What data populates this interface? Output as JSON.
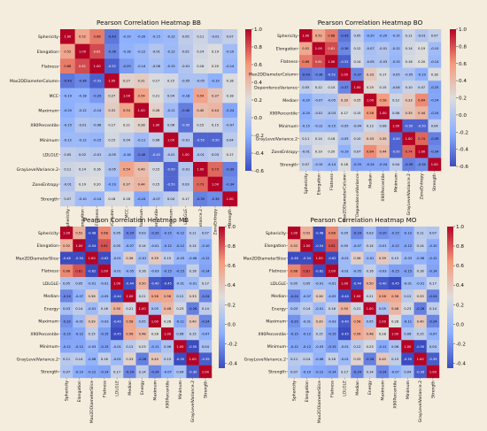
{
  "page": {
    "background": "#f4ecdc"
  },
  "colorbar_ticks": [
    "-0.6",
    "-0.4",
    "-0.2",
    "0.0",
    "0.2",
    "0.4",
    "0.6",
    "0.8",
    "1.0"
  ],
  "colorbar_ticks_short": [
    "-0.4",
    "-0.2",
    "0.0",
    "0.2",
    "0.4",
    "0.6",
    "0.8",
    "1.0"
  ],
  "colors": {
    "neg": "#3b4cc0",
    "mid": "#dddddd",
    "pos": "#b40426"
  },
  "chart_data": [
    {
      "type": "heatmap",
      "title": "Pearson Correlation Heatmap BB",
      "labels": [
        "Sphericity",
        "Elongation",
        "Flatness",
        "Max2DDiameterColumn",
        "MCC",
        "Maximum",
        "X90Percentile",
        "Minimum",
        "LDLGLE",
        "GrayLevelVariance.2",
        "ZoneEntropy",
        "Strength"
      ],
      "vmin": -0.6,
      "vmax": 1.0,
      "matrix": [
        [
          1.0,
          0.52,
          0.68,
          -0.43,
          -0.19,
          -0.2,
          -0.15,
          -0.12,
          0.05,
          0.11,
          -0.01,
          0.07
        ],
        [
          0.52,
          1.0,
          0.81,
          -0.36,
          -0.18,
          -0.12,
          -0.01,
          -0.12,
          0.02,
          0.14,
          0.19,
          -0.1
        ],
        [
          0.68,
          0.81,
          1.0,
          -0.52,
          -0.29,
          -0.14,
          -0.06,
          -0.15,
          -0.01,
          0.16,
          0.2,
          -0.14
        ],
        [
          -0.43,
          -0.36,
          -0.52,
          1.0,
          0.27,
          0.31,
          0.17,
          0.15,
          -0.05,
          -0.05,
          -0.19,
          0.18
        ],
        [
          -0.19,
          -0.18,
          -0.29,
          0.27,
          1.0,
          0.54,
          0.21,
          0.04,
          -0.18,
          0.54,
          0.37,
          0.18
        ],
        [
          -0.2,
          -0.12,
          -0.14,
          0.31,
          0.54,
          1.0,
          0.28,
          -0.11,
          -0.4,
          0.4,
          0.44,
          -0.24
        ],
        [
          -0.15,
          -0.01,
          -0.06,
          0.17,
          0.21,
          0.28,
          1.0,
          0.06,
          -0.45,
          0.15,
          0.15,
          -0.07
        ],
        [
          -0.12,
          -0.12,
          -0.15,
          0.15,
          0.04,
          -0.11,
          0.06,
          1.0,
          -0.01,
          -0.5,
          -0.5,
          0.04
        ],
        [
          0.05,
          0.02,
          -0.01,
          -0.05,
          -0.18,
          -0.4,
          -0.45,
          -0.01,
          1.0,
          -0.01,
          0.03,
          0.17
        ],
        [
          0.11,
          0.14,
          0.16,
          -0.05,
          0.54,
          0.4,
          0.15,
          -0.5,
          -0.01,
          1.0,
          0.73,
          -0.39
        ],
        [
          -0.01,
          0.19,
          0.2,
          -0.19,
          0.37,
          0.44,
          0.15,
          -0.5,
          0.03,
          0.73,
          1.0,
          -0.34
        ],
        [
          0.07,
          -0.1,
          -0.14,
          0.18,
          0.18,
          -0.24,
          -0.07,
          0.04,
          0.17,
          -0.39,
          -0.34,
          1.0
        ]
      ]
    },
    {
      "type": "heatmap",
      "title": "Pearson Correlation Heatmap BO",
      "labels": [
        "Sphericity",
        "Elongation",
        "Flatness",
        "Max2DDiameterColumn",
        "DependenceVariance",
        "Median",
        "X90Percentile",
        "Minimum",
        "GrayLevelVariance.2",
        "ZoneEntropy",
        "Strength"
      ],
      "vmin": -0.6,
      "vmax": 1.0,
      "matrix": [
        [
          1.0,
          0.52,
          0.68,
          -0.43,
          0.05,
          -0.2,
          -0.2,
          -0.15,
          0.11,
          -0.01,
          0.07
        ],
        [
          0.52,
          1.0,
          0.81,
          -0.36,
          0.12,
          -0.07,
          -0.01,
          -0.12,
          0.14,
          0.19,
          -0.1
        ],
        [
          0.68,
          0.81,
          1.0,
          -0.52,
          0.14,
          -0.05,
          -0.03,
          -0.15,
          0.16,
          0.2,
          -0.14
        ],
        [
          -0.43,
          -0.36,
          -0.52,
          1.0,
          -0.37,
          0.33,
          0.17,
          -0.05,
          -0.05,
          -0.19,
          0.18
        ],
        [
          0.05,
          0.12,
          0.14,
          -0.37,
          1.0,
          0.25,
          0.15,
          -0.04,
          0.1,
          0.07,
          -0.25
        ],
        [
          -0.2,
          -0.07,
          -0.05,
          0.33,
          0.25,
          1.0,
          0.58,
          0.12,
          0.33,
          0.64,
          -0.24
        ],
        [
          -0.2,
          -0.01,
          -0.03,
          0.17,
          0.15,
          0.58,
          1.0,
          0.06,
          0.35,
          0.44,
          -0.24
        ],
        [
          -0.15,
          -0.12,
          -0.15,
          -0.05,
          -0.04,
          0.12,
          0.06,
          1.0,
          -0.5,
          -0.5,
          0.04
        ],
        [
          0.11,
          0.14,
          0.16,
          -0.05,
          0.1,
          0.33,
          0.35,
          -0.5,
          1.0,
          0.74,
          -0.39
        ],
        [
          -0.01,
          0.19,
          0.2,
          -0.19,
          0.07,
          0.64,
          0.44,
          -0.5,
          0.74,
          1.0,
          -0.34
        ],
        [
          0.07,
          -0.1,
          -0.14,
          0.18,
          -0.25,
          -0.24,
          -0.24,
          0.04,
          -0.39,
          -0.34,
          1.0
        ]
      ]
    },
    {
      "type": "heatmap",
      "title": "Pearson Correlation Heatmap MB",
      "labels": [
        "Sphericity",
        "Elongation",
        "Max2DDiameterSlice",
        "Flatness",
        "LDLGLE",
        "Median",
        "Energy",
        "Maximum",
        "X90Percentile",
        "Minimum",
        "GrayLevelVariance.2",
        "Strength"
      ],
      "vmin": -0.45,
      "vmax": 1.0,
      "matrix": [
        [
          1.0,
          0.52,
          -0.48,
          0.68,
          0.05,
          -0.24,
          0.03,
          -0.2,
          -0.15,
          -0.12,
          0.11,
          0.07
        ],
        [
          0.52,
          1.0,
          -0.54,
          0.81,
          0.05,
          -0.07,
          0.14,
          -0.01,
          -0.12,
          -0.12,
          0.14,
          -0.1
        ],
        [
          -0.48,
          -0.54,
          1.0,
          -0.62,
          -0.01,
          0.36,
          -0.01,
          0.39,
          0.15,
          -0.03,
          -0.06,
          -0.12
        ],
        [
          0.68,
          0.81,
          -0.62,
          1.0,
          -0.01,
          -0.05,
          0.16,
          -0.03,
          -0.15,
          -0.15,
          0.16,
          -0.14
        ],
        [
          0.05,
          0.05,
          -0.01,
          -0.01,
          1.0,
          -0.44,
          0.5,
          -0.4,
          -0.45,
          -0.01,
          -0.01,
          0.17
        ],
        [
          -0.24,
          -0.07,
          0.36,
          -0.05,
          -0.44,
          1.0,
          0.21,
          0.58,
          0.56,
          0.12,
          0.33,
          -0.24
        ],
        [
          0.03,
          0.14,
          -0.01,
          0.16,
          0.5,
          0.21,
          1.0,
          0.05,
          0.48,
          0.23,
          -0.26,
          0.14
        ],
        [
          -0.2,
          -0.01,
          0.39,
          -0.03,
          -0.4,
          0.58,
          0.05,
          1.0,
          0.28,
          -0.11,
          0.4,
          -0.24
        ],
        [
          -0.15,
          -0.12,
          0.15,
          -0.15,
          -0.45,
          0.56,
          0.48,
          0.28,
          1.0,
          0.06,
          0.15,
          -0.07
        ],
        [
          -0.12,
          -0.12,
          -0.03,
          -0.15,
          -0.01,
          0.12,
          0.23,
          -0.11,
          0.06,
          1.0,
          -0.5,
          0.04
        ],
        [
          0.11,
          0.14,
          -0.06,
          0.16,
          -0.01,
          0.33,
          -0.26,
          0.4,
          0.15,
          -0.5,
          1.0,
          -0.39
        ],
        [
          0.07,
          -0.1,
          -0.12,
          -0.14,
          0.17,
          -0.24,
          0.14,
          -0.24,
          -0.07,
          0.04,
          -0.39,
          1.0
        ]
      ]
    },
    {
      "type": "heatmap",
      "title": "Pearson Correlation Heatmap MO",
      "labels": [
        "Sphericity",
        "Elongation",
        "Max2DDiameterSlice",
        "Flatness",
        "LDLGLE",
        "Median",
        "Energy",
        "Maximum",
        "X90Percentile",
        "Minimum",
        "GrayLevelVariance.2",
        "Strength"
      ],
      "vmin": -0.45,
      "vmax": 1.0,
      "matrix": [
        [
          1.0,
          0.52,
          -0.48,
          0.68,
          0.05,
          -0.24,
          0.03,
          -0.2,
          -0.15,
          -0.12,
          0.11,
          0.07
        ],
        [
          0.52,
          1.0,
          -0.54,
          0.81,
          0.05,
          -0.07,
          0.14,
          -0.01,
          -0.12,
          -0.12,
          0.14,
          -0.1
        ],
        [
          -0.48,
          -0.54,
          1.0,
          -0.62,
          -0.01,
          0.36,
          -0.01,
          0.39,
          0.15,
          -0.03,
          -0.06,
          -0.12
        ],
        [
          0.68,
          0.81,
          -0.62,
          1.0,
          -0.01,
          -0.05,
          0.16,
          -0.03,
          -0.15,
          -0.15,
          0.16,
          -0.14
        ],
        [
          0.05,
          0.05,
          -0.01,
          -0.01,
          1.0,
          -0.44,
          0.5,
          -0.4,
          -0.45,
          -0.01,
          -0.01,
          0.17
        ],
        [
          -0.24,
          -0.07,
          0.36,
          -0.05,
          -0.44,
          1.0,
          0.21,
          0.58,
          0.56,
          0.12,
          0.33,
          -0.24
        ],
        [
          0.03,
          0.14,
          -0.01,
          0.16,
          0.5,
          0.21,
          1.0,
          0.05,
          0.48,
          0.23,
          -0.26,
          0.14
        ],
        [
          -0.2,
          -0.01,
          0.39,
          -0.03,
          -0.4,
          0.58,
          0.05,
          1.0,
          0.28,
          -0.11,
          0.4,
          -0.24
        ],
        [
          -0.15,
          -0.12,
          0.15,
          -0.15,
          -0.45,
          0.56,
          0.48,
          0.28,
          1.0,
          0.06,
          0.15,
          -0.07
        ],
        [
          -0.12,
          -0.12,
          -0.03,
          -0.15,
          -0.01,
          0.12,
          0.23,
          -0.11,
          0.06,
          1.0,
          -0.5,
          0.04
        ],
        [
          0.11,
          0.14,
          -0.06,
          0.16,
          -0.01,
          0.33,
          -0.26,
          0.4,
          0.15,
          -0.5,
          1.0,
          -0.39
        ],
        [
          0.07,
          -0.1,
          -0.12,
          -0.14,
          0.17,
          -0.24,
          0.14,
          -0.24,
          -0.07,
          0.04,
          -0.39,
          1.0
        ]
      ]
    }
  ]
}
